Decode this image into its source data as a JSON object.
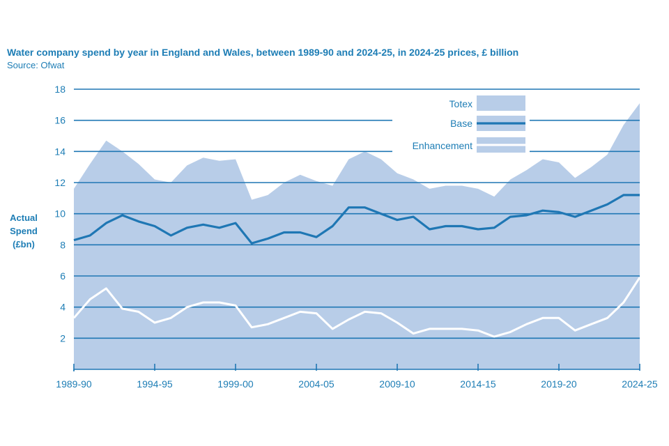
{
  "chart_data": {
    "type": "area",
    "title": "Water company spend by year in England and Wales, between 1989-90 and 2024-25, in 2024-25 prices, £ billion",
    "source": "Source: Ofwat",
    "ylabel": [
      "Actual",
      "Spend",
      "(£bn)"
    ],
    "xlabel": "",
    "ylim": [
      0,
      18
    ],
    "yticks": [
      2,
      4,
      6,
      8,
      10,
      12,
      14,
      16,
      18
    ],
    "grid": true,
    "legend_position": "top-right",
    "x_start_year": 1989,
    "x": [
      1989,
      1990,
      1991,
      1992,
      1993,
      1994,
      1995,
      1996,
      1997,
      1998,
      1999,
      2000,
      2001,
      2002,
      2003,
      2004,
      2005,
      2006,
      2007,
      2008,
      2009,
      2010,
      2011,
      2012,
      2013,
      2014,
      2015,
      2016,
      2017,
      2018,
      2019,
      2020,
      2021,
      2022,
      2023,
      2024
    ],
    "x_tick_labels": [
      {
        "year": 1989,
        "label": "1989-90"
      },
      {
        "year": 1994,
        "label": "1994-95"
      },
      {
        "year": 1999,
        "label": "1999-00"
      },
      {
        "year": 2004,
        "label": "2004-05"
      },
      {
        "year": 2009,
        "label": "2009-10"
      },
      {
        "year": 2014,
        "label": "2014-15"
      },
      {
        "year": 2019,
        "label": "2019-20"
      },
      {
        "year": 2024,
        "label": "2024-25"
      }
    ],
    "series": [
      {
        "name": "Totex",
        "style": "area",
        "color": "#b8cde8",
        "values": [
          11.6,
          13.2,
          14.7,
          14.0,
          13.2,
          12.2,
          12.0,
          13.1,
          13.6,
          13.4,
          13.5,
          10.9,
          11.2,
          12.0,
          12.5,
          12.1,
          11.8,
          13.5,
          14.0,
          13.5,
          12.6,
          12.2,
          11.6,
          11.8,
          11.8,
          11.6,
          11.1,
          12.2,
          12.8,
          13.5,
          13.3,
          12.3,
          13.0,
          13.8,
          15.7,
          17.1
        ]
      },
      {
        "name": "Base",
        "style": "line",
        "color": "#1f77b4",
        "values": [
          8.3,
          8.6,
          9.4,
          9.9,
          9.5,
          9.2,
          8.6,
          9.1,
          9.3,
          9.1,
          9.4,
          8.1,
          8.4,
          8.8,
          8.8,
          8.5,
          9.2,
          10.4,
          10.4,
          10.0,
          9.6,
          9.8,
          9.0,
          9.2,
          9.2,
          9.0,
          9.1,
          9.8,
          9.9,
          10.2,
          10.1,
          9.8,
          10.2,
          10.6,
          11.2,
          11.2
        ]
      },
      {
        "name": "Enhancement",
        "style": "line",
        "color": "#ffffff",
        "values": [
          3.3,
          4.5,
          5.2,
          3.9,
          3.7,
          3.0,
          3.3,
          4.0,
          4.3,
          4.3,
          4.1,
          2.7,
          2.9,
          3.3,
          3.7,
          3.6,
          2.6,
          3.2,
          3.7,
          3.6,
          3.0,
          2.3,
          2.6,
          2.6,
          2.6,
          2.5,
          2.1,
          2.4,
          2.9,
          3.3,
          3.3,
          2.5,
          2.9,
          3.3,
          4.3,
          5.9
        ]
      }
    ]
  },
  "colors": {
    "accent_text": "#1d7db5",
    "grid": "#1f77b4",
    "area": "#b8cde8",
    "base_line": "#1f77b4",
    "enhancement_line": "#ffffff"
  }
}
